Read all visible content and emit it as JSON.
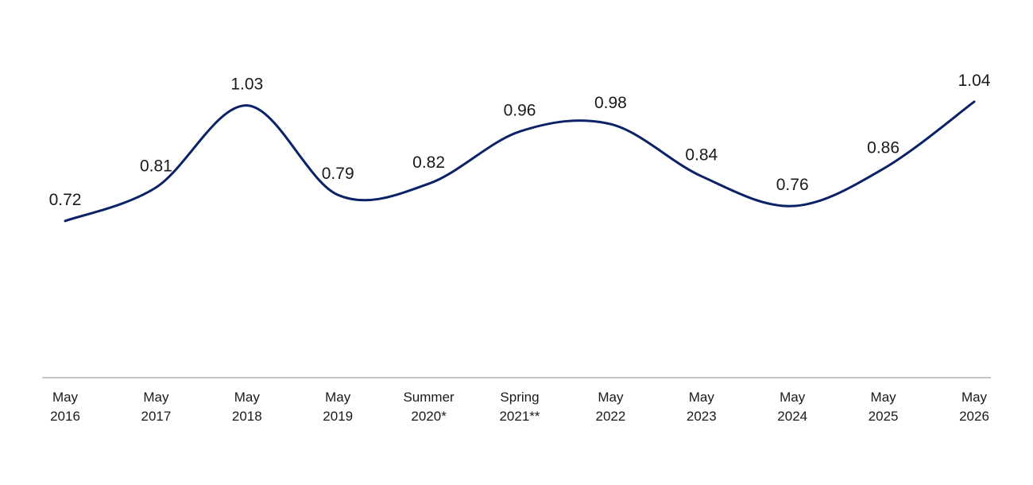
{
  "chart_data": {
    "type": "line",
    "title": "",
    "xlabel": "",
    "ylabel": "",
    "categories": [
      [
        "May",
        "2016"
      ],
      [
        "May",
        "2017"
      ],
      [
        "May",
        "2018"
      ],
      [
        "May",
        "2019"
      ],
      [
        "Summer",
        "2020*"
      ],
      [
        "Spring",
        "2021**"
      ],
      [
        "May",
        "2022"
      ],
      [
        "May",
        "2023"
      ],
      [
        "May",
        "2024"
      ],
      [
        "May",
        "2025"
      ],
      [
        "May",
        "2026"
      ]
    ],
    "series": [
      {
        "values": [
          0.72,
          0.81,
          1.03,
          0.79,
          0.82,
          0.96,
          0.98,
          0.84,
          0.76,
          0.86,
          1.04
        ],
        "labels": [
          "0.72",
          "0.81",
          "1.03",
          "0.79",
          "0.82",
          "0.96",
          "0.98",
          "0.84",
          "0.76",
          "0.86",
          "1.04"
        ],
        "color": "#0b2267"
      }
    ],
    "ylim": [
      0.5,
      1.2
    ],
    "grid": false,
    "legend": "none"
  }
}
